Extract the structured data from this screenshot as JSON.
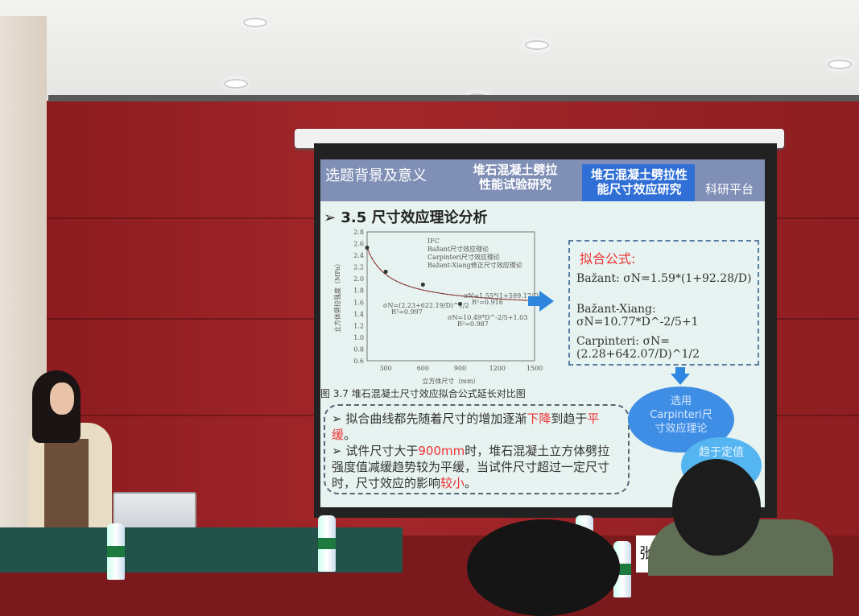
{
  "slide": {
    "tabs": [
      "选题背景及意义",
      "堆石混凝土劈拉\n性能试验研究",
      "堆石混凝土劈拉性\n能尺寸效应研究",
      "科研平台"
    ],
    "active_tab": 2,
    "section_title": "3.5 尺寸效应理论分析",
    "chart": {
      "legend": [
        "IFC",
        "Bažant尺寸效应理论",
        "Carpinteri尺寸效应理论",
        "Bažant-Xiang修正尺寸效应理论"
      ],
      "xlabel": "立方体尺寸（mm）",
      "ylabel": "立方体劈拉强度（MPa）",
      "x_ticks": [
        "300",
        "600",
        "900",
        "1200",
        "1500"
      ],
      "y_ticks": [
        "0.6",
        "0.8",
        "1.0",
        "1.2",
        "1.4",
        "1.6",
        "1.8",
        "2.0",
        "2.2",
        "2.4",
        "2.6",
        "2.8"
      ],
      "xlim": [
        150,
        1500
      ],
      "ylim": [
        0.6,
        2.8
      ],
      "points": [
        [
          150,
          2.53
        ],
        [
          300,
          2.12
        ],
        [
          600,
          1.9
        ],
        [
          900,
          1.57
        ]
      ],
      "annotations": [
        "σN=1.55*(1+599.17/D)",
        "R²=0.916",
        "σN=(2.23+622.19/D)^1/2",
        "R²=0.997",
        "σN=10.49*D^-2/5+1.03",
        "R²=0.987"
      ]
    },
    "formula_box": {
      "title": "拟合公式:",
      "formulas": [
        "Bažant: σN=1.59*(1+92.28/D)",
        "Bažant-Xiang: σN=10.77*D^-2/5+1",
        "Carpinteri: σN=(2.28+642.07/D)^1/2"
      ]
    },
    "figure_caption": "图 3.7 堆石混凝土尺寸效应拟合公式延长对比图",
    "bullets": {
      "b1_a": "拟合曲线都先随着尺寸的增加逐渐",
      "b1_red1": "下降",
      "b1_b": "到趋于",
      "b1_red2": "平缓",
      "b1_c": "。",
      "b2_a": "试件尺寸大于",
      "b2_red1": "900mm",
      "b2_b": "时，堆石混凝土立方体劈拉强度值减缓趋势较为平缓，当试件尺寸超过一定尺寸时，尺寸效应的影响",
      "b2_red2": "较小",
      "b2_c": "。"
    },
    "ellipse1": "选用\nCarpinteri尺\n寸效应理论",
    "ellipse2": "趋于定值"
  },
  "nameplate": "张",
  "colors": {
    "header": "#7f8fb5",
    "active_tab": "#2f6fd6",
    "wall": "#a3262a",
    "accent_red": "#e33333"
  }
}
